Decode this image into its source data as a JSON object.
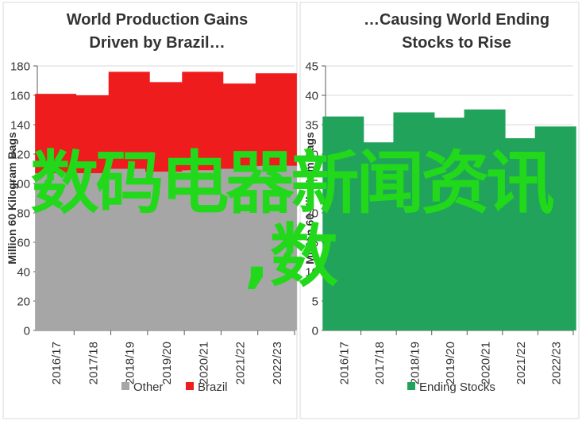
{
  "chart_data": [
    {
      "type": "bar",
      "stacked": true,
      "title": "World Production Gains Driven by Brazil…",
      "xlabel": "",
      "ylabel": "Million 60 Kilogram Bags",
      "ylim": [
        0,
        180
      ],
      "yticks": [
        0,
        20,
        40,
        60,
        80,
        100,
        120,
        140,
        160,
        180
      ],
      "grid": true,
      "legend": "bottom",
      "categories": [
        "2016/17",
        "2017/18",
        "2018/19",
        "2019/20",
        "2020/21",
        "2021/22",
        "2022/23"
      ],
      "series": [
        {
          "name": "Other",
          "color": "#a6a6a6",
          "values": [
            107,
            107,
            110,
            108,
            109,
            110,
            112
          ]
        },
        {
          "name": "Brazil",
          "color": "#ee1c1c",
          "values": [
            54,
            53,
            66,
            61,
            67,
            58,
            63
          ]
        }
      ],
      "totals": [
        161,
        160,
        176,
        169,
        176,
        168,
        175
      ]
    },
    {
      "type": "bar",
      "title": "…Causing World Ending Stocks to Rise",
      "xlabel": "",
      "ylabel": "Million 60 Kilogram Bags",
      "ylim": [
        0,
        45
      ],
      "yticks": [
        0,
        5,
        10,
        15,
        20,
        25,
        30,
        35,
        40,
        45
      ],
      "grid": true,
      "legend": "bottom",
      "categories": [
        "2016/17",
        "2017/18",
        "2018/19",
        "2019/20",
        "2020/21",
        "2021/22",
        "2022/23"
      ],
      "series": [
        {
          "name": "Ending Stocks",
          "color": "#21a35c",
          "values": [
            36.4,
            32.0,
            37.1,
            36.2,
            37.6,
            32.7,
            34.7
          ]
        }
      ]
    }
  ],
  "watermark": {
    "line1": "数码电器新闻资讯",
    "line2": ",数",
    "color": "#22d81a"
  }
}
